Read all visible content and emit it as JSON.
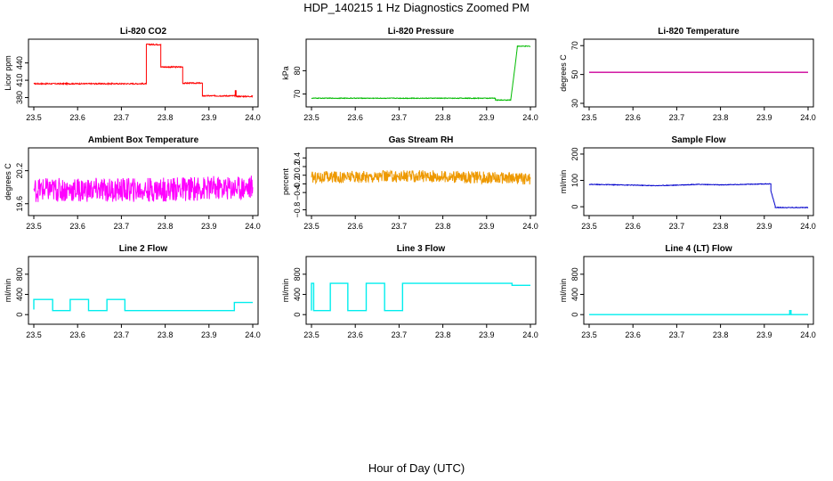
{
  "page": {
    "title": "HDP_140215  1 Hz Diagnostics Zoomed PM",
    "xlabel": "Hour of Day (UTC)"
  },
  "chart_data": [
    {
      "type": "line",
      "title": "Li-820 CO2",
      "ylabel": "Licor ppm",
      "color": "#ff0000",
      "xlim": [
        23.5,
        24.0
      ],
      "ylim": [
        370,
        475
      ],
      "yticks": [
        380,
        410,
        440
      ],
      "xticks": [
        23.5,
        23.6,
        23.7,
        23.8,
        23.9,
        24.0
      ],
      "noise": 1,
      "x": [
        23.5,
        23.757,
        23.757,
        23.79,
        23.79,
        23.84,
        23.84,
        23.885,
        23.885,
        23.96,
        23.96,
        23.962,
        23.962,
        24.0
      ],
      "y": [
        404,
        404,
        472,
        472,
        433,
        433,
        405,
        405,
        383,
        383,
        392,
        392,
        382,
        382
      ]
    },
    {
      "type": "line",
      "title": "Li-820 Pressure",
      "ylabel": "kPa",
      "color": "#00bb00",
      "xlim": [
        23.5,
        24.0
      ],
      "ylim": [
        66,
        92
      ],
      "yticks": [
        70,
        80
      ],
      "xticks": [
        23.5,
        23.6,
        23.7,
        23.8,
        23.9,
        24.0
      ],
      "noise": 0.15,
      "x": [
        23.5,
        23.92,
        23.92,
        23.955,
        23.965,
        23.97,
        23.97,
        24.0
      ],
      "y": [
        68.2,
        68.2,
        67.4,
        67.4,
        82,
        90,
        90.5,
        90.5
      ]
    },
    {
      "type": "line",
      "title": "Li-820 Temperature",
      "ylabel": "degrees C",
      "color": "#cc0099",
      "xlim": [
        23.5,
        24.0
      ],
      "ylim": [
        30,
        72
      ],
      "yticks": [
        30,
        50,
        70
      ],
      "xticks": [
        23.5,
        23.6,
        23.7,
        23.8,
        23.9,
        24.0
      ],
      "noise": 0,
      "x": [
        23.5,
        24.0
      ],
      "y": [
        51.5,
        51.5
      ]
    },
    {
      "type": "line",
      "title": "Ambient Box Temperature",
      "ylabel": "degrees C",
      "color": "#ff00ff",
      "xlim": [
        23.5,
        24.0
      ],
      "ylim": [
        19.45,
        20.55
      ],
      "yticks": [
        19.6,
        20.2
      ],
      "xticks": [
        23.5,
        23.6,
        23.7,
        23.8,
        23.9,
        24.0
      ],
      "noise": 0.22,
      "x": [
        23.5,
        23.75,
        24.0
      ],
      "y": [
        19.85,
        19.85,
        19.9
      ]
    },
    {
      "type": "line",
      "title": "Gas Stream RH",
      "ylabel": "percent",
      "color": "#ee9900",
      "xlim": [
        23.5,
        24.0
      ],
      "ylim": [
        -0.85,
        0.55
      ],
      "yticks": [
        -0.8,
        -0.4,
        -0.2,
        0.0,
        0.2,
        0.4
      ],
      "xticks": [
        23.5,
        23.6,
        23.7,
        23.8,
        23.9,
        24.0
      ],
      "noise": 0.14,
      "x": [
        23.5,
        23.75,
        24.0
      ],
      "y": [
        -0.05,
        -0.02,
        -0.08
      ]
    },
    {
      "type": "line",
      "title": "Sample Flow",
      "ylabel": "ml/min",
      "color": "#0000cc",
      "xlim": [
        23.5,
        24.0
      ],
      "ylim": [
        -20,
        210
      ],
      "yticks": [
        0,
        100,
        200
      ],
      "xticks": [
        23.5,
        23.6,
        23.7,
        23.8,
        23.9,
        24.0
      ],
      "noise": 1.2,
      "x": [
        23.5,
        23.6,
        23.65,
        23.7,
        23.75,
        23.8,
        23.915,
        23.915,
        23.925,
        23.925,
        24.0
      ],
      "y": [
        85,
        82,
        80,
        82,
        85,
        83,
        87,
        60,
        3,
        -3,
        -3
      ]
    },
    {
      "type": "line",
      "title": "Line 2 Flow",
      "ylabel": "ml/min",
      "color": "#00eeee",
      "xlim": [
        23.5,
        24.0
      ],
      "ylim": [
        -120,
        1080
      ],
      "yticks": [
        0,
        400,
        800
      ],
      "xticks": [
        23.5,
        23.6,
        23.7,
        23.8,
        23.9,
        24.0
      ],
      "noise": 0,
      "x": [
        23.5,
        23.5,
        23.543,
        23.543,
        23.583,
        23.583,
        23.625,
        23.625,
        23.667,
        23.667,
        23.708,
        23.708,
        23.958,
        23.958,
        24.0
      ],
      "y": [
        100,
        300,
        300,
        80,
        80,
        300,
        300,
        80,
        80,
        300,
        300,
        80,
        80,
        240,
        240
      ]
    },
    {
      "type": "line",
      "title": "Line 3 Flow",
      "ylabel": "ml/min",
      "color": "#00eeee",
      "xlim": [
        23.5,
        24.0
      ],
      "ylim": [
        -120,
        1080
      ],
      "yticks": [
        0,
        400,
        800
      ],
      "xticks": [
        23.5,
        23.6,
        23.7,
        23.8,
        23.9,
        24.0
      ],
      "noise": 0,
      "x": [
        23.5,
        23.5,
        23.505,
        23.505,
        23.543,
        23.543,
        23.583,
        23.583,
        23.625,
        23.625,
        23.667,
        23.667,
        23.708,
        23.708,
        23.958,
        23.958,
        24.0
      ],
      "y": [
        80,
        620,
        620,
        80,
        80,
        620,
        620,
        80,
        80,
        620,
        620,
        80,
        80,
        620,
        620,
        580,
        580
      ]
    },
    {
      "type": "line",
      "title": "Line 4 (LT) Flow",
      "ylabel": "ml/min",
      "color": "#00eeee",
      "xlim": [
        23.5,
        24.0
      ],
      "ylim": [
        -120,
        1080
      ],
      "yticks": [
        0,
        400,
        800
      ],
      "xticks": [
        23.5,
        23.6,
        23.7,
        23.8,
        23.9,
        24.0
      ],
      "noise": 0,
      "x": [
        23.5,
        23.958,
        23.958,
        23.961,
        23.961,
        24.0
      ],
      "y": [
        0,
        0,
        80,
        80,
        0,
        0
      ]
    }
  ]
}
